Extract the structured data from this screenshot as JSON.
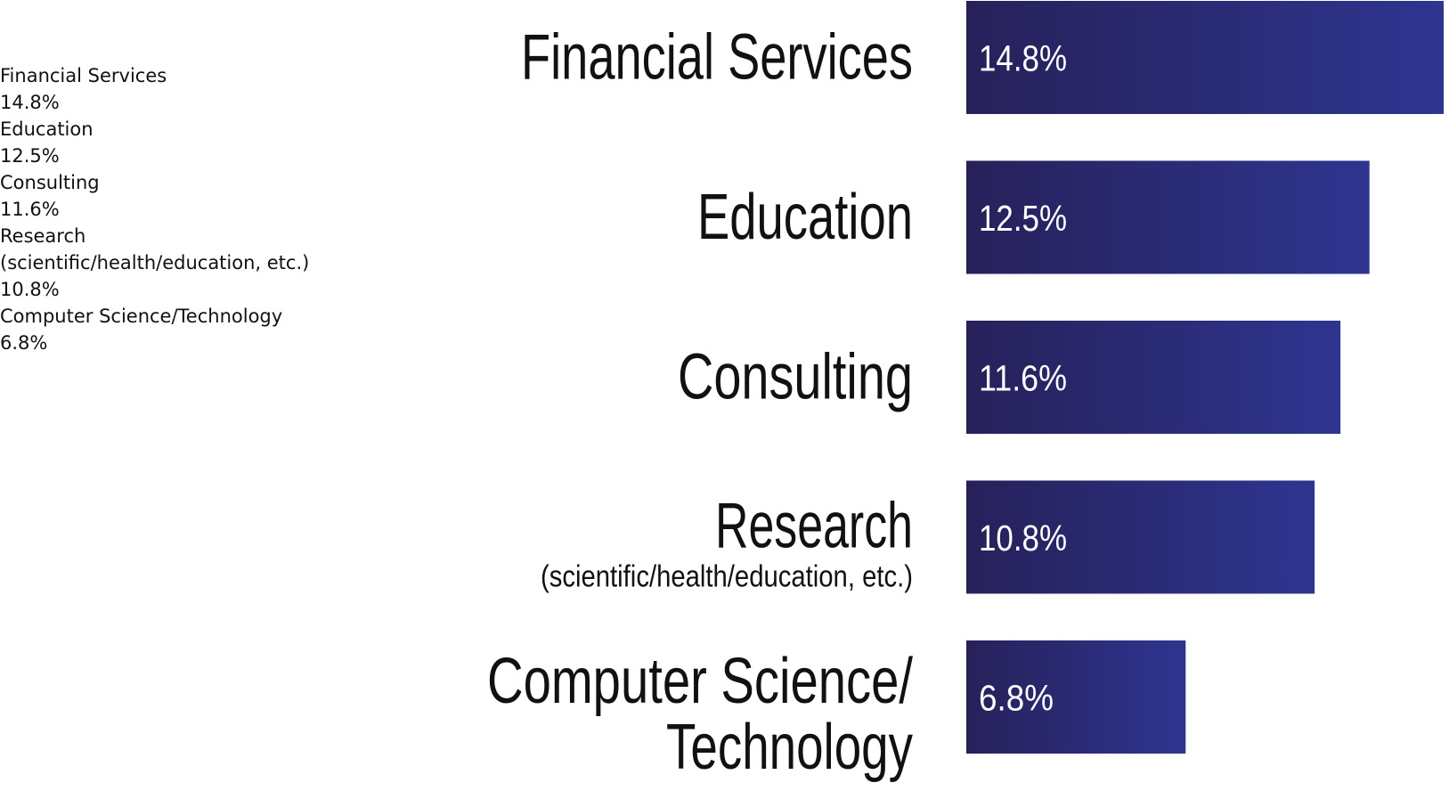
{
  "text_list": [
    {
      "label": "Financial Services",
      "value": "14.8%"
    },
    {
      "label": "Education",
      "value": "12.5%"
    },
    {
      "label": "Consulting",
      "value": "11.6%"
    },
    {
      "label": "Research",
      "value": ""
    },
    {
      "label": "(scientific/health/education, etc.)",
      "value": "10.8%"
    },
    {
      "label": "Computer Science/Technology",
      "value": "6.8%"
    }
  ],
  "chart_data": {
    "type": "bar",
    "orientation": "horizontal",
    "categories": [
      [
        "Financial Services"
      ],
      [
        "Education"
      ],
      [
        "Consulting"
      ],
      [
        "Research",
        "(scientific/health/education, etc.)"
      ],
      [
        "Computer Science/",
        "Technology"
      ]
    ],
    "values": [
      14.8,
      12.5,
      11.6,
      10.8,
      6.8
    ],
    "value_labels": [
      "14.8%",
      "12.5%",
      "11.6%",
      "10.8%",
      "6.8%"
    ],
    "unit": "%",
    "title": "",
    "xlabel": "",
    "ylabel": "",
    "xlim": [
      0,
      14.8
    ],
    "grid": false,
    "legend": "none",
    "colors": {
      "bar_start": "#27215a",
      "bar_end": "#2e3590",
      "category_text": "#111111",
      "value_text": "#ffffff"
    }
  }
}
